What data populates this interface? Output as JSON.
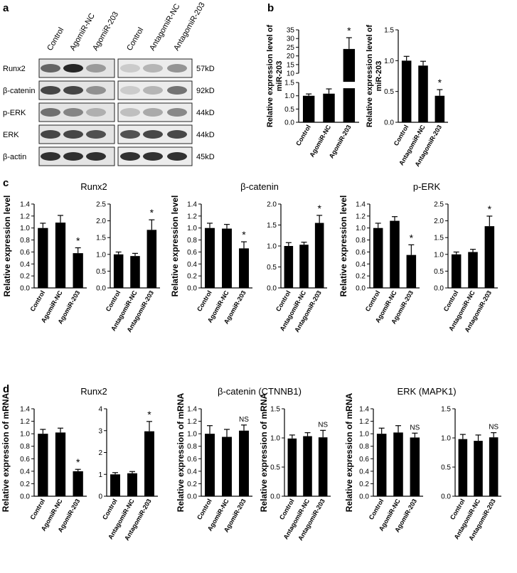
{
  "panel_labels": [
    "a",
    "b",
    "c",
    "d"
  ],
  "blot": {
    "lanes": [
      "Control",
      "AgomiR-NC",
      "AgomiR-203",
      "Control",
      "AntagomiR-NC",
      "AntagomiR-203"
    ],
    "rows": [
      {
        "protein": "Runx2",
        "size": "57kD"
      },
      {
        "protein": "β-catenin",
        "size": "92kD"
      },
      {
        "protein": "p-ERK",
        "size": "44kD"
      },
      {
        "protein": "ERK",
        "size": "44kD"
      },
      {
        "protein": "β-actin",
        "size": "45kD"
      }
    ]
  },
  "chart_data": [
    {
      "type": "bar",
      "ylabel": [
        "Relative expression level of",
        "miR-203"
      ],
      "categories": [
        "Control",
        "AgomiR-NC",
        "AgomiR-203"
      ],
      "values": [
        1.0,
        1.08,
        24
      ],
      "errors": [
        0.07,
        0.18,
        6.5
      ],
      "annotations": [
        null,
        null,
        "*"
      ],
      "color": "#000000",
      "ylim": [
        0,
        35
      ],
      "ybreak": [
        1.5,
        10
      ],
      "yticks": [
        {
          "value": 0,
          "label": "0.0"
        },
        0.5,
        {
          "value": 1,
          "label": "1.0"
        },
        1.5,
        10,
        15,
        20,
        25,
        30,
        35
      ]
    },
    {
      "type": "bar",
      "ylabel": [
        "Relative expression level of",
        "miR-203"
      ],
      "categories": [
        "Control",
        "AntagomiR-NC",
        "AntagomiR-203"
      ],
      "values": [
        1.0,
        0.92,
        0.43
      ],
      "errors": [
        0.07,
        0.07,
        0.1
      ],
      "annotations": [
        null,
        null,
        "*"
      ],
      "color": "#000000",
      "ylim": [
        0,
        1.5
      ],
      "yticks": [
        {
          "value": 0,
          "label": "0.0"
        },
        0.5,
        {
          "value": 1,
          "label": "1.0"
        },
        1.5
      ]
    },
    {
      "type": "bar",
      "title": "Runx2",
      "ylabel": [
        "Relative expression level"
      ],
      "categories": [
        "Control",
        "AgomiR-NC",
        "AgomiR-203"
      ],
      "values": [
        1.0,
        1.09,
        0.58
      ],
      "errors": [
        0.08,
        0.12,
        0.09
      ],
      "annotations": [
        null,
        null,
        "*"
      ],
      "color": "#000000",
      "ylim": [
        0,
        1.4
      ],
      "yticks": [
        {
          "value": 0,
          "label": "0.0"
        },
        0.2,
        0.4,
        0.6,
        0.8,
        {
          "value": 1,
          "label": "1.0"
        },
        1.2,
        1.4
      ]
    },
    {
      "type": "bar",
      "categories": [
        "Control",
        "AntagomiR-NC",
        "AntagomiR-203"
      ],
      "values": [
        1.0,
        0.95,
        1.73
      ],
      "errors": [
        0.07,
        0.08,
        0.3
      ],
      "annotations": [
        null,
        null,
        "*"
      ],
      "color": "#000000",
      "ylim": [
        0,
        2.5
      ],
      "yticks": [
        {
          "value": 0,
          "label": "0.0"
        },
        0.5,
        {
          "value": 1,
          "label": "1.0"
        },
        1.5,
        {
          "value": 2,
          "label": "2.0"
        },
        2.5
      ]
    },
    {
      "type": "bar",
      "title": "β-catenin",
      "ylabel": [
        "Relative expression level"
      ],
      "categories": [
        "Control",
        "AgomiR-NC",
        "AgomiR-203"
      ],
      "values": [
        1.0,
        0.99,
        0.66
      ],
      "errors": [
        0.08,
        0.07,
        0.11
      ],
      "annotations": [
        null,
        null,
        "*"
      ],
      "color": "#000000",
      "ylim": [
        0,
        1.4
      ],
      "yticks": [
        {
          "value": 0,
          "label": "0.0"
        },
        0.2,
        0.4,
        0.6,
        0.8,
        {
          "value": 1,
          "label": "1.0"
        },
        1.2,
        1.4
      ]
    },
    {
      "type": "bar",
      "categories": [
        "Control",
        "AntagomiR-NC",
        "AntagomiR-203"
      ],
      "values": [
        1.0,
        1.03,
        1.55
      ],
      "errors": [
        0.08,
        0.06,
        0.18
      ],
      "annotations": [
        null,
        null,
        "*"
      ],
      "color": "#000000",
      "ylim": [
        0,
        2
      ],
      "yticks": [
        {
          "value": 0,
          "label": "0.0"
        },
        0.5,
        {
          "value": 1,
          "label": "1.0"
        },
        1.5,
        {
          "value": 2,
          "label": "2.0"
        }
      ]
    },
    {
      "type": "bar",
      "title": "p-ERK",
      "ylabel": [
        "Relative expression level"
      ],
      "categories": [
        "Control",
        "AgomiR-NC",
        "AgomiR-203"
      ],
      "values": [
        1.0,
        1.12,
        0.55
      ],
      "errors": [
        0.08,
        0.07,
        0.17
      ],
      "annotations": [
        null,
        null,
        "*"
      ],
      "color": "#000000",
      "ylim": [
        0,
        1.4
      ],
      "yticks": [
        {
          "value": 0,
          "label": "0.0"
        },
        0.2,
        0.4,
        0.6,
        0.8,
        {
          "value": 1,
          "label": "1.0"
        },
        1.2,
        1.4
      ]
    },
    {
      "type": "bar",
      "categories": [
        "Control",
        "AntagomiR-NC",
        "AntagomiR-203"
      ],
      "values": [
        1.0,
        1.07,
        1.84
      ],
      "errors": [
        0.07,
        0.08,
        0.3
      ],
      "annotations": [
        null,
        null,
        "*"
      ],
      "color": "#000000",
      "ylim": [
        0,
        2.5
      ],
      "yticks": [
        {
          "value": 0,
          "label": "0.0"
        },
        0.5,
        {
          "value": 1,
          "label": "1.0"
        },
        1.5,
        {
          "value": 2,
          "label": "2.0"
        },
        2.5
      ]
    },
    {
      "type": "bar",
      "title": "Runx2",
      "ylabel": [
        "Relative expression of mRNA"
      ],
      "categories": [
        "Control",
        "AgomiR-NC",
        "AgomiR-203"
      ],
      "values": [
        1.0,
        1.02,
        0.4
      ],
      "errors": [
        0.07,
        0.07,
        0.03
      ],
      "annotations": [
        null,
        null,
        "*"
      ],
      "color": "#000000",
      "ylim": [
        0,
        1.4
      ],
      "yticks": [
        {
          "value": 0,
          "label": "0.0"
        },
        0.2,
        0.4,
        0.6,
        0.8,
        {
          "value": 1,
          "label": "1.0"
        },
        1.2,
        1.4
      ]
    },
    {
      "type": "bar",
      "categories": [
        "Control",
        "AntagomiR-NC",
        "AntagomiR-203"
      ],
      "values": [
        1.0,
        1.05,
        2.97
      ],
      "errors": [
        0.08,
        0.08,
        0.45
      ],
      "annotations": [
        null,
        null,
        "*"
      ],
      "color": "#000000",
      "ylim": [
        0,
        4
      ],
      "yticks": [
        0,
        1,
        2,
        3,
        4
      ]
    },
    {
      "type": "bar",
      "title": "β-catenin (CTNNB1)",
      "ylabel": [
        "Relative expression of mRNA"
      ],
      "categories": [
        "Control",
        "AgomiR-NC",
        "AgomiR-203"
      ],
      "values": [
        1.0,
        0.95,
        1.05
      ],
      "errors": [
        0.13,
        0.12,
        0.09
      ],
      "annotations": [
        null,
        null,
        "NS"
      ],
      "color": "#000000",
      "ylim": [
        0,
        1.4
      ],
      "yticks": [
        {
          "value": 0,
          "label": "0.0"
        },
        0.2,
        0.4,
        0.6,
        0.8,
        {
          "value": 1,
          "label": "1.0"
        },
        1.2,
        1.4
      ]
    },
    {
      "type": "bar",
      "ylabel": [
        "Relative expression of mRNA"
      ],
      "categories": [
        "Control",
        "AntagomiR-NC",
        "AntagomiR-203"
      ],
      "values": [
        0.99,
        1.03,
        1.01
      ],
      "errors": [
        0.06,
        0.06,
        0.12
      ],
      "annotations": [
        null,
        null,
        "NS"
      ],
      "color": "#000000",
      "ylim": [
        0,
        1.5
      ],
      "yticks": [
        {
          "value": 0,
          "label": "0.0"
        },
        0.5,
        {
          "value": 1,
          "label": "1.0"
        },
        1.5
      ]
    },
    {
      "type": "bar",
      "title": "ERK (MAPK1)",
      "ylabel": [
        "Relative expression of mRNA"
      ],
      "categories": [
        "Control",
        "AgomiR-NC",
        "AgomiR-203"
      ],
      "values": [
        1.0,
        1.02,
        0.94
      ],
      "errors": [
        0.09,
        0.11,
        0.07
      ],
      "annotations": [
        null,
        null,
        "NS"
      ],
      "color": "#000000",
      "ylim": [
        0,
        1.4
      ],
      "yticks": [
        {
          "value": 0,
          "label": "0.0"
        },
        0.2,
        0.4,
        0.6,
        0.8,
        {
          "value": 1,
          "label": "1.0"
        },
        1.2,
        1.4
      ]
    },
    {
      "type": "bar",
      "categories": [
        "Control",
        "AntagomiR-NC",
        "AntagomiR-203"
      ],
      "values": [
        0.98,
        0.95,
        1.01
      ],
      "errors": [
        0.08,
        0.1,
        0.08
      ],
      "annotations": [
        null,
        null,
        "NS"
      ],
      "color": "#000000",
      "ylim": [
        0,
        1.5
      ],
      "yticks": [
        {
          "value": 0,
          "label": "0.0"
        },
        0.5,
        {
          "value": 1,
          "label": "1.0"
        },
        1.5
      ]
    }
  ]
}
